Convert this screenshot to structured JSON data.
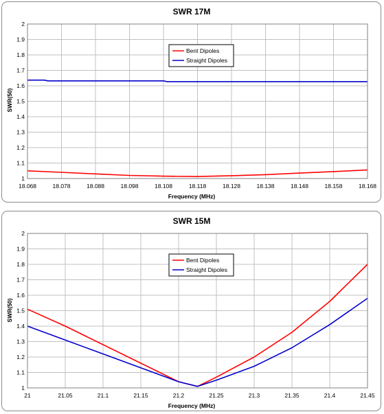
{
  "chart_data": [
    {
      "type": "line",
      "title": "SWR 17M",
      "xlabel": "Frequency (MHz)",
      "ylabel": "SWR(50)",
      "x_ticks": [
        "18.068",
        "18.078",
        "18.088",
        "18.098",
        "18.108",
        "18.118",
        "18.128",
        "18.138",
        "18.148",
        "18.158",
        "18.168"
      ],
      "y_ticks": [
        "1",
        "1.1",
        "1.2",
        "1.3",
        "1.4",
        "1.5",
        "1.6",
        "1.7",
        "1.8",
        "1.9",
        "2"
      ],
      "xlim": [
        18.068,
        18.168
      ],
      "ylim": [
        1,
        2
      ],
      "grid": true,
      "legend_position": "top-center",
      "series": [
        {
          "name": "Bent Dipoles",
          "color": "#ff0000",
          "x": [
            18.068,
            18.078,
            18.088,
            18.098,
            18.108,
            18.118,
            18.128,
            18.138,
            18.148,
            18.158,
            18.168
          ],
          "y": [
            1.05,
            1.04,
            1.03,
            1.02,
            1.015,
            1.013,
            1.018,
            1.025,
            1.035,
            1.045,
            1.055
          ]
        },
        {
          "name": "Straight Dipoles",
          "color": "#0000cc",
          "x": [
            18.068,
            18.073,
            18.074,
            18.108,
            18.109,
            18.168
          ],
          "y": [
            1.637,
            1.637,
            1.632,
            1.632,
            1.627,
            1.627
          ]
        }
      ]
    },
    {
      "type": "line",
      "title": "SWR 15M",
      "xlabel": "Frequency (MHz)",
      "ylabel": "SWR(50)",
      "x_ticks": [
        "21",
        "21.05",
        "21.1",
        "21.15",
        "21.2",
        "21.25",
        "21.3",
        "21.35",
        "21.4",
        "21.45"
      ],
      "y_ticks": [
        "1",
        "1.1",
        "1.2",
        "1.3",
        "1.4",
        "1.5",
        "1.6",
        "1.7",
        "1.8",
        "1.9",
        "2"
      ],
      "xlim": [
        21,
        21.45
      ],
      "ylim": [
        1,
        2
      ],
      "grid": true,
      "legend_position": "top-center",
      "series": [
        {
          "name": "Bent Dipoles",
          "color": "#ff0000",
          "x": [
            21,
            21.05,
            21.1,
            21.15,
            21.2,
            21.225,
            21.25,
            21.3,
            21.35,
            21.4,
            21.45
          ],
          "y": [
            1.51,
            1.4,
            1.28,
            1.16,
            1.04,
            1.01,
            1.07,
            1.2,
            1.36,
            1.56,
            1.8
          ]
        },
        {
          "name": "Straight Dipoles",
          "color": "#0000cc",
          "x": [
            21,
            21.05,
            21.1,
            21.15,
            21.2,
            21.225,
            21.25,
            21.3,
            21.35,
            21.4,
            21.45
          ],
          "y": [
            1.4,
            1.31,
            1.22,
            1.13,
            1.04,
            1.01,
            1.05,
            1.14,
            1.26,
            1.41,
            1.58
          ]
        }
      ]
    }
  ]
}
